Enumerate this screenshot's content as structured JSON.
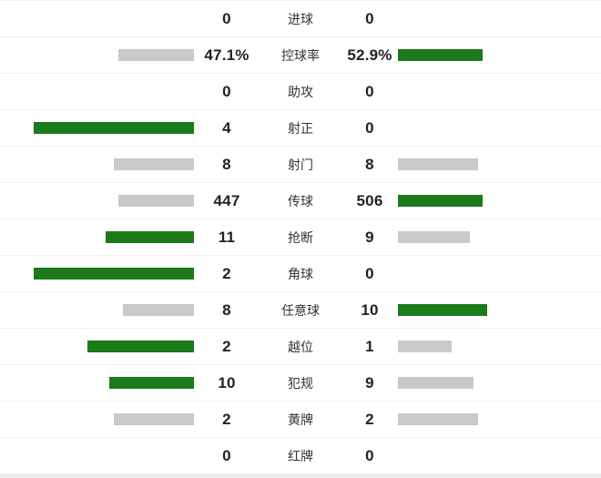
{
  "chart_data": {
    "type": "bar",
    "orientation": "horizontal-paired",
    "title": "",
    "colors": {
      "leading_bar": "#1b7a1b",
      "trailing_bar": "#c9c9c9"
    },
    "rows": [
      {
        "label": "进球",
        "home": "0",
        "away": "0"
      },
      {
        "label": "控球率",
        "home": "47.1%",
        "away": "52.9%"
      },
      {
        "label": "助攻",
        "home": "0",
        "away": "0"
      },
      {
        "label": "射正",
        "home": "4",
        "away": "0"
      },
      {
        "label": "射门",
        "home": "8",
        "away": "8"
      },
      {
        "label": "传球",
        "home": "447",
        "away": "506"
      },
      {
        "label": "抢断",
        "home": "11",
        "away": "9"
      },
      {
        "label": "角球",
        "home": "2",
        "away": "0"
      },
      {
        "label": "任意球",
        "home": "8",
        "away": "10"
      },
      {
        "label": "越位",
        "home": "2",
        "away": "1"
      },
      {
        "label": "犯规",
        "home": "10",
        "away": "9"
      },
      {
        "label": "黄牌",
        "home": "2",
        "away": "2"
      },
      {
        "label": "红牌",
        "home": "0",
        "away": "0"
      }
    ]
  }
}
